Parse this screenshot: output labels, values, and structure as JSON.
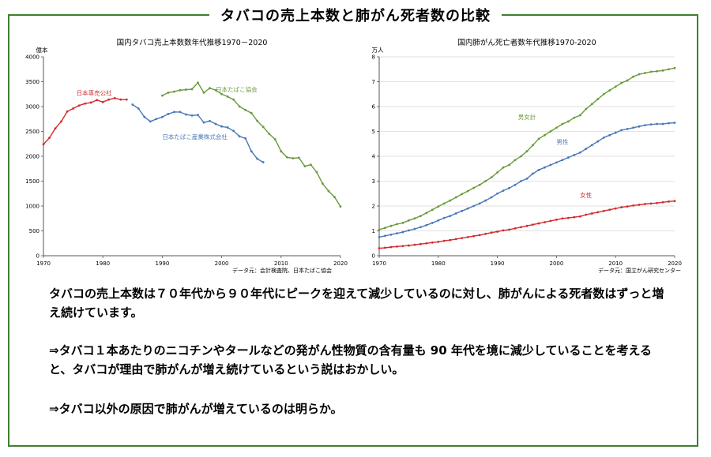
{
  "main_title": "タバコの売上本数と肺がん死者数の比較",
  "chart_data": [
    {
      "type": "line",
      "title": "国内タバコ売上本数数年代推移1970－2020",
      "ylabel": "億本",
      "source": "データ元：会計検査院、日本たばこ協会",
      "xlim": [
        1970,
        2020
      ],
      "ylim": [
        0,
        4000
      ],
      "xticks": [
        1970,
        1980,
        1990,
        2000,
        2010,
        2020
      ],
      "yticks": [
        0,
        500,
        1000,
        1500,
        2000,
        2500,
        3000,
        3500,
        4000
      ],
      "grid": false,
      "series": [
        {
          "name": "日本専売公社",
          "color": "#d22b2b",
          "x": [
            1970,
            1971,
            1972,
            1973,
            1974,
            1975,
            1976,
            1977,
            1978,
            1979,
            1980,
            1981,
            1982,
            1983,
            1984
          ],
          "y": [
            2240,
            2370,
            2560,
            2700,
            2900,
            2960,
            3020,
            3060,
            3080,
            3130,
            3090,
            3140,
            3170,
            3140,
            3140
          ]
        },
        {
          "name": "日本たばこ産業株式会社",
          "color": "#4a78b5",
          "x": [
            1985,
            1986,
            1987,
            1988,
            1989,
            1990,
            1991,
            1992,
            1993,
            1994,
            1995,
            1996,
            1997,
            1998,
            1999,
            2000,
            2001,
            2002,
            2003,
            2004,
            2005,
            2006,
            2007
          ],
          "y": [
            3040,
            2960,
            2790,
            2700,
            2750,
            2790,
            2850,
            2890,
            2890,
            2840,
            2820,
            2830,
            2680,
            2710,
            2650,
            2600,
            2580,
            2510,
            2400,
            2360,
            2100,
            1950,
            1880
          ]
        },
        {
          "name": "日本たばこ協会",
          "color": "#6a9a3a",
          "x": [
            1990,
            1991,
            1992,
            1993,
            1994,
            1995,
            1996,
            1997,
            1998,
            1999,
            2000,
            2001,
            2002,
            2003,
            2004,
            2005,
            2006,
            2007,
            2008,
            2009,
            2010,
            2011,
            2012,
            2013,
            2014,
            2015,
            2016,
            2017,
            2018,
            2019,
            2020
          ],
          "y": [
            3220,
            3280,
            3300,
            3330,
            3340,
            3350,
            3480,
            3280,
            3370,
            3330,
            3250,
            3200,
            3140,
            3000,
            2930,
            2870,
            2710,
            2590,
            2450,
            2340,
            2100,
            1980,
            1960,
            1970,
            1800,
            1830,
            1680,
            1450,
            1300,
            1180,
            990
          ]
        }
      ]
    },
    {
      "type": "line",
      "title": "国内肺がん死亡者数年代推移1970-2020",
      "ylabel": "万人",
      "source": "データ元：国立がん研究センター",
      "xlim": [
        1970,
        2020
      ],
      "ylim": [
        0,
        8
      ],
      "xticks": [
        1970,
        1980,
        1990,
        2000,
        2010,
        2020
      ],
      "yticks": [
        0,
        1,
        2,
        3,
        4,
        5,
        6,
        7,
        8
      ],
      "grid": true,
      "series": [
        {
          "name": "男女計",
          "color": "#6a9a3a",
          "x": [
            1970,
            1971,
            1972,
            1973,
            1974,
            1975,
            1976,
            1977,
            1978,
            1979,
            1980,
            1981,
            1982,
            1983,
            1984,
            1985,
            1986,
            1987,
            1988,
            1989,
            1990,
            1991,
            1992,
            1993,
            1994,
            1995,
            1996,
            1997,
            1998,
            1999,
            2000,
            2001,
            2002,
            2003,
            2004,
            2005,
            2006,
            2007,
            2008,
            2009,
            2010,
            2011,
            2012,
            2013,
            2014,
            2015,
            2016,
            2017,
            2018,
            2019,
            2020
          ],
          "y": [
            1.05,
            1.12,
            1.2,
            1.27,
            1.32,
            1.42,
            1.5,
            1.6,
            1.72,
            1.85,
            1.98,
            2.1,
            2.22,
            2.35,
            2.48,
            2.6,
            2.73,
            2.85,
            3.0,
            3.15,
            3.35,
            3.55,
            3.65,
            3.85,
            4.0,
            4.2,
            4.45,
            4.7,
            4.85,
            5.0,
            5.15,
            5.3,
            5.4,
            5.55,
            5.65,
            5.9,
            6.1,
            6.3,
            6.5,
            6.65,
            6.8,
            6.95,
            7.05,
            7.2,
            7.3,
            7.35,
            7.4,
            7.42,
            7.45,
            7.5,
            7.55
          ]
        },
        {
          "name": "男性",
          "color": "#4a78b5",
          "x": [
            1970,
            1971,
            1972,
            1973,
            1974,
            1975,
            1976,
            1977,
            1978,
            1979,
            1980,
            1981,
            1982,
            1983,
            1984,
            1985,
            1986,
            1987,
            1988,
            1989,
            1990,
            1991,
            1992,
            1993,
            1994,
            1995,
            1996,
            1997,
            1998,
            1999,
            2000,
            2001,
            2002,
            2003,
            2004,
            2005,
            2006,
            2007,
            2008,
            2009,
            2010,
            2011,
            2012,
            2013,
            2014,
            2015,
            2016,
            2017,
            2018,
            2019,
            2020
          ],
          "y": [
            0.75,
            0.8,
            0.85,
            0.9,
            0.95,
            1.02,
            1.08,
            1.15,
            1.23,
            1.32,
            1.42,
            1.52,
            1.6,
            1.7,
            1.8,
            1.9,
            2.0,
            2.1,
            2.22,
            2.35,
            2.5,
            2.62,
            2.72,
            2.85,
            3.0,
            3.1,
            3.3,
            3.45,
            3.55,
            3.65,
            3.75,
            3.85,
            3.95,
            4.05,
            4.15,
            4.3,
            4.45,
            4.6,
            4.75,
            4.85,
            4.95,
            5.05,
            5.1,
            5.15,
            5.2,
            5.25,
            5.28,
            5.3,
            5.3,
            5.33,
            5.35
          ]
        },
        {
          "name": "女性",
          "color": "#d22b2b",
          "x": [
            1970,
            1971,
            1972,
            1973,
            1974,
            1975,
            1976,
            1977,
            1978,
            1979,
            1980,
            1981,
            1982,
            1983,
            1984,
            1985,
            1986,
            1987,
            1988,
            1989,
            1990,
            1991,
            1992,
            1993,
            1994,
            1995,
            1996,
            1997,
            1998,
            1999,
            2000,
            2001,
            2002,
            2003,
            2004,
            2005,
            2006,
            2007,
            2008,
            2009,
            2010,
            2011,
            2012,
            2013,
            2014,
            2015,
            2016,
            2017,
            2018,
            2019,
            2020
          ],
          "y": [
            0.3,
            0.32,
            0.35,
            0.37,
            0.39,
            0.41,
            0.44,
            0.47,
            0.5,
            0.53,
            0.56,
            0.6,
            0.63,
            0.67,
            0.71,
            0.75,
            0.79,
            0.83,
            0.88,
            0.93,
            0.97,
            1.02,
            1.05,
            1.1,
            1.15,
            1.2,
            1.25,
            1.3,
            1.35,
            1.4,
            1.45,
            1.5,
            1.52,
            1.55,
            1.58,
            1.65,
            1.7,
            1.75,
            1.8,
            1.85,
            1.9,
            1.95,
            1.98,
            2.02,
            2.05,
            2.08,
            2.1,
            2.12,
            2.15,
            2.18,
            2.2
          ]
        }
      ]
    }
  ],
  "paragraphs": [
    "タバコの売上本数は７０年代から９０年代にピークを迎えて減少しているのに対し、肺がんによる死者数はずっと増え続けています。",
    "⇒タバコ１本あたりのニコチンやタールなどの発がん性物質の含有量も 90 年代を境に減少していることを考えると、タバコが理由で肺がんが増え続けているという説はおかしい。",
    "⇒タバコ以外の原因で肺がんが増えているのは明らか。"
  ]
}
